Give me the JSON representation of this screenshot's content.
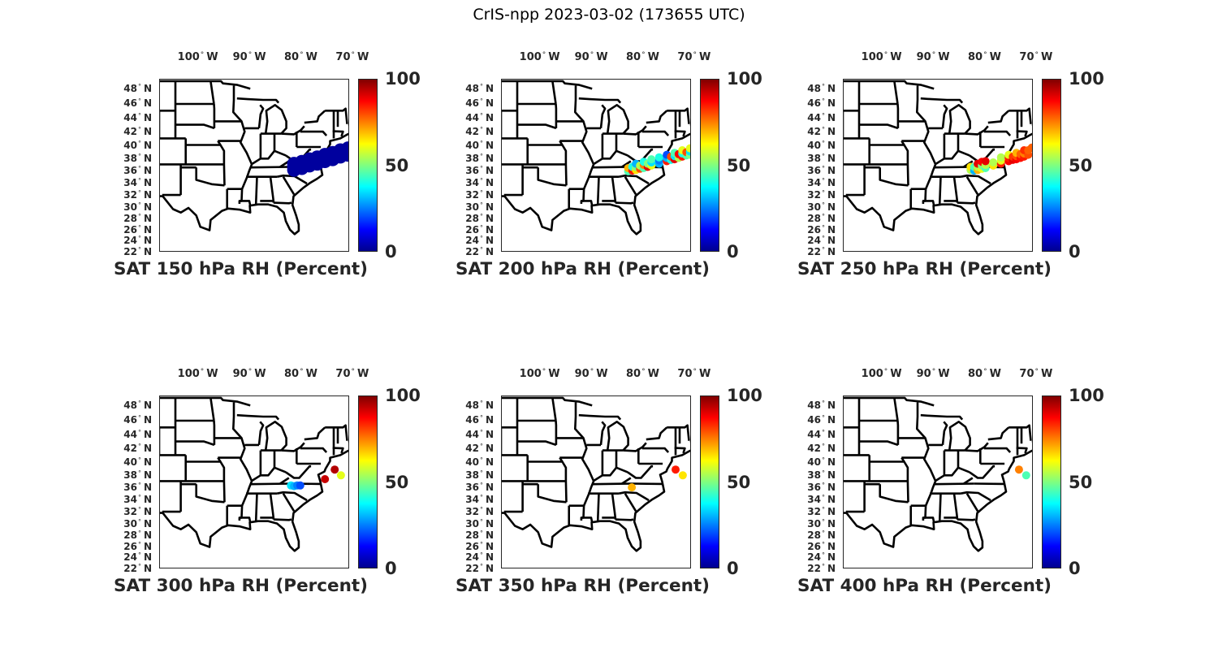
{
  "figure_title": "CrIS-npp 2023-03-02 (173655 UTC)",
  "chart_data": {
    "type": "scatter",
    "title": "CrIS-npp 2023-03-02 (173655 UTC)",
    "map_extent": {
      "lon": [
        -107.2,
        -70.3
      ],
      "lat": [
        22,
        49.3
      ],
      "projection": "mercator"
    },
    "lon_ticks": [
      {
        "value": -100,
        "label": "100",
        "hemi": "W"
      },
      {
        "value": -90,
        "label": "90",
        "hemi": "W"
      },
      {
        "value": -80,
        "label": "80",
        "hemi": "W"
      },
      {
        "value": -70,
        "label": "70",
        "hemi": "W"
      }
    ],
    "lat_ticks": [
      {
        "value": 48,
        "label": "48"
      },
      {
        "value": 46,
        "label": "46"
      },
      {
        "value": 44,
        "label": "44"
      },
      {
        "value": 42,
        "label": "42"
      },
      {
        "value": 40,
        "label": "40"
      },
      {
        "value": 38,
        "label": "38"
      },
      {
        "value": 36,
        "label": "36"
      },
      {
        "value": 34,
        "label": "34"
      },
      {
        "value": 32,
        "label": "32"
      },
      {
        "value": 30,
        "label": "30"
      },
      {
        "value": 28,
        "label": "28"
      },
      {
        "value": 26,
        "label": "26"
      },
      {
        "value": 24,
        "label": "24"
      },
      {
        "value": 22,
        "label": "22"
      }
    ],
    "lat_hemi": "N",
    "colorbar": {
      "min": 0,
      "max": 100,
      "colormap": "jet",
      "ticks": [
        {
          "value": 100,
          "label": "100"
        },
        {
          "value": 50,
          "label": "50"
        },
        {
          "value": 0,
          "label": "0"
        }
      ]
    },
    "panels": [
      {
        "title": "SAT 150 hPa RH (Percent)",
        "marker": "large",
        "points": [
          [
            -81,
            36.1,
            3
          ],
          [
            -81,
            36.6,
            3
          ],
          [
            -81,
            37.1,
            3
          ],
          [
            -79.5,
            36.4,
            3
          ],
          [
            -79.5,
            36.9,
            3
          ],
          [
            -79.5,
            37.4,
            3
          ],
          [
            -78,
            36.8,
            3
          ],
          [
            -78,
            37.3,
            3
          ],
          [
            -78,
            37.8,
            3
          ],
          [
            -76.5,
            37.1,
            3
          ],
          [
            -76.5,
            37.6,
            3
          ],
          [
            -76.5,
            38.1,
            3
          ],
          [
            -75,
            37.5,
            3
          ],
          [
            -75,
            38.0,
            3
          ],
          [
            -75,
            38.5,
            3
          ],
          [
            -73.5,
            37.8,
            3
          ],
          [
            -73.5,
            38.3,
            3
          ],
          [
            -73.5,
            38.8,
            3
          ],
          [
            -72,
            38.2,
            3
          ],
          [
            -72,
            38.7,
            3
          ],
          [
            -72,
            39.2,
            3
          ],
          [
            -70.5,
            38.5,
            3
          ],
          [
            -70.5,
            39.0,
            3
          ],
          [
            -70.5,
            39.5,
            3
          ]
        ]
      },
      {
        "title": "SAT 200 hPa RH (Percent)",
        "marker": "small",
        "points": [
          [
            -82.5,
            35.9,
            45
          ],
          [
            -82.5,
            36.4,
            70
          ],
          [
            -81.7,
            36.0,
            85
          ],
          [
            -81.7,
            36.6,
            40
          ],
          [
            -81,
            36.1,
            65
          ],
          [
            -81,
            36.6,
            50
          ],
          [
            -81,
            37.1,
            30
          ],
          [
            -80.2,
            36.3,
            80
          ],
          [
            -80.2,
            36.8,
            55
          ],
          [
            -79.5,
            36.4,
            45
          ],
          [
            -79.5,
            36.9,
            75
          ],
          [
            -79.5,
            37.4,
            40
          ],
          [
            -78.7,
            36.6,
            90
          ],
          [
            -78.7,
            37.1,
            50
          ],
          [
            -78,
            36.8,
            60
          ],
          [
            -78,
            37.3,
            35
          ],
          [
            -78,
            37.8,
            45
          ],
          [
            -76.5,
            37.1,
            30
          ],
          [
            -76.5,
            37.6,
            25
          ],
          [
            -76.5,
            38.1,
            40
          ],
          [
            -75,
            37.5,
            85
          ],
          [
            -75,
            38.0,
            30
          ],
          [
            -75,
            38.5,
            20
          ],
          [
            -74.2,
            37.7,
            40
          ],
          [
            -74.2,
            38.2,
            80
          ],
          [
            -73.5,
            37.8,
            90
          ],
          [
            -73.5,
            38.3,
            35
          ],
          [
            -73.5,
            38.8,
            45
          ],
          [
            -72.7,
            38.0,
            55
          ],
          [
            -72.7,
            38.6,
            88
          ],
          [
            -72,
            38.2,
            85
          ],
          [
            -72,
            38.7,
            40
          ],
          [
            -72,
            39.2,
            60
          ],
          [
            -71.2,
            38.4,
            45
          ],
          [
            -71.2,
            38.9,
            80
          ],
          [
            -70.5,
            38.5,
            50
          ],
          [
            -70.5,
            39.0,
            35
          ],
          [
            -70.5,
            39.5,
            60
          ]
        ]
      },
      {
        "title": "SAT 250 hPa RH (Percent)",
        "marker": "small",
        "points": [
          [
            -82.4,
            36.1,
            55
          ],
          [
            -82.4,
            36.6,
            65
          ],
          [
            -81.7,
            36.0,
            30
          ],
          [
            -81.7,
            36.6,
            45
          ],
          [
            -81,
            36.1,
            70
          ],
          [
            -81,
            36.6,
            55
          ],
          [
            -81,
            37.1,
            90
          ],
          [
            -80.2,
            36.3,
            60
          ],
          [
            -80.2,
            36.8,
            50
          ],
          [
            -80.2,
            37.4,
            88
          ],
          [
            -79.5,
            36.4,
            45
          ],
          [
            -79.5,
            36.9,
            55
          ],
          [
            -79.5,
            37.5,
            90
          ],
          [
            -78,
            36.8,
            65
          ],
          [
            -78,
            37.3,
            55
          ],
          [
            -76.5,
            37.1,
            85
          ],
          [
            -76.5,
            37.6,
            60
          ],
          [
            -76.5,
            38.1,
            55
          ],
          [
            -75,
            37.5,
            88
          ],
          [
            -75,
            38.0,
            85
          ],
          [
            -75,
            38.5,
            60
          ],
          [
            -74.2,
            37.7,
            90
          ],
          [
            -74.2,
            38.2,
            82
          ],
          [
            -73.5,
            37.8,
            88
          ],
          [
            -73.5,
            38.3,
            80
          ],
          [
            -73.5,
            38.8,
            70
          ],
          [
            -72.7,
            38.0,
            86
          ],
          [
            -72.7,
            38.6,
            78
          ],
          [
            -72,
            38.2,
            85
          ],
          [
            -72,
            38.7,
            75
          ],
          [
            -72,
            39.2,
            83
          ],
          [
            -71.2,
            38.5,
            80
          ],
          [
            -71.2,
            39.2,
            78
          ],
          [
            -70.5,
            39.6,
            78
          ]
        ]
      },
      {
        "title": "SAT 300 hPa RH (Percent)",
        "marker": "small",
        "points": [
          [
            -81.6,
            36.3,
            35
          ],
          [
            -81.0,
            36.2,
            30
          ],
          [
            -80.4,
            36.3,
            25
          ],
          [
            -79.8,
            36.3,
            20
          ],
          [
            -73.1,
            38.8,
            95
          ],
          [
            -75.0,
            37.3,
            93
          ],
          [
            -71.9,
            37.9,
            60
          ]
        ]
      },
      {
        "title": "SAT 350 hPa RH (Percent)",
        "marker": "small",
        "points": [
          [
            -81.8,
            36.0,
            70
          ],
          [
            -73.3,
            38.8,
            85
          ],
          [
            -71.9,
            37.9,
            65
          ]
        ]
      },
      {
        "title": "SAT 400 hPa RH (Percent)",
        "marker": "small",
        "points": [
          [
            -73.0,
            38.8,
            75
          ],
          [
            -71.6,
            37.9,
            45
          ]
        ]
      }
    ]
  }
}
